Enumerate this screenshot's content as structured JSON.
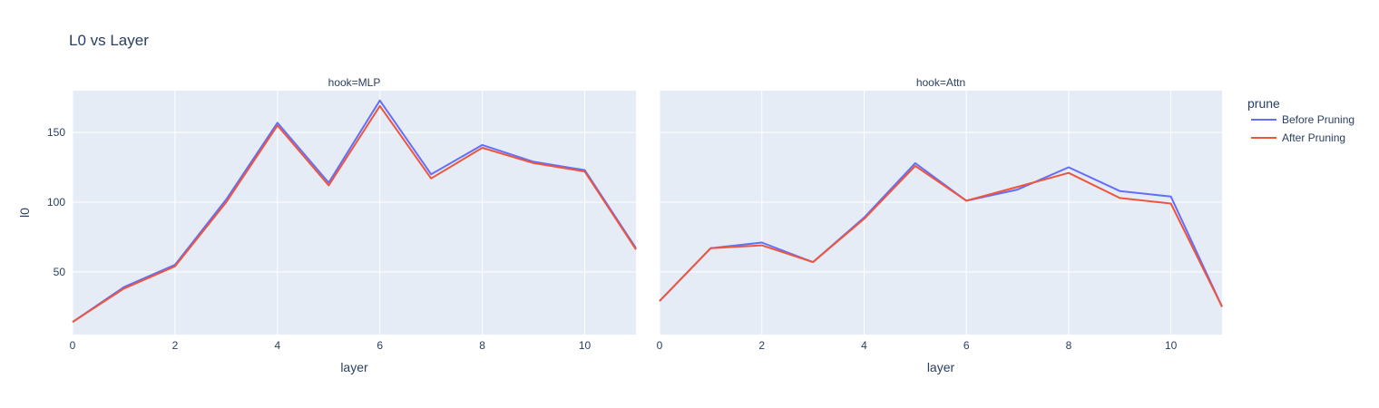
{
  "chart_data": {
    "type": "line",
    "title": "L0 vs Layer",
    "xlabel": "layer",
    "ylabel": "l0",
    "legend_title": "prune",
    "legend_position": "right",
    "grid": true,
    "xlim": [
      0,
      11
    ],
    "ylim": [
      5,
      180
    ],
    "x_ticks": [
      0,
      2,
      4,
      6,
      8,
      10
    ],
    "y_ticks": [
      50,
      100,
      150
    ],
    "colors": {
      "Before Pruning": "#636efa",
      "After Pruning": "#ef553b",
      "plot_bg": "#e5ecf6",
      "text": "#2a3f5f"
    },
    "facets": [
      {
        "title": "hook=MLP",
        "x": [
          0,
          1,
          2,
          3,
          4,
          5,
          6,
          7,
          8,
          9,
          10,
          11
        ],
        "series": [
          {
            "name": "Before Pruning",
            "values": [
              14,
              39,
              55,
              102,
              157,
              114,
              173,
              120,
              141,
              129,
              123,
              67
            ]
          },
          {
            "name": "After Pruning",
            "values": [
              14,
              38,
              54,
              100,
              155,
              112,
              169,
              117,
              139,
              128,
              122,
              66
            ]
          }
        ]
      },
      {
        "title": "hook=Attn",
        "x": [
          0,
          1,
          2,
          3,
          4,
          5,
          6,
          7,
          8,
          9,
          10,
          11
        ],
        "series": [
          {
            "name": "Before Pruning",
            "values": [
              29,
              67,
              71,
              57,
              89,
              128,
              101,
              109,
              125,
              108,
              104,
              25
            ]
          },
          {
            "name": "After Pruning",
            "values": [
              29,
              67,
              69,
              57,
              88,
              126,
              101,
              111,
              121,
              103,
              99,
              25
            ]
          }
        ]
      }
    ]
  }
}
